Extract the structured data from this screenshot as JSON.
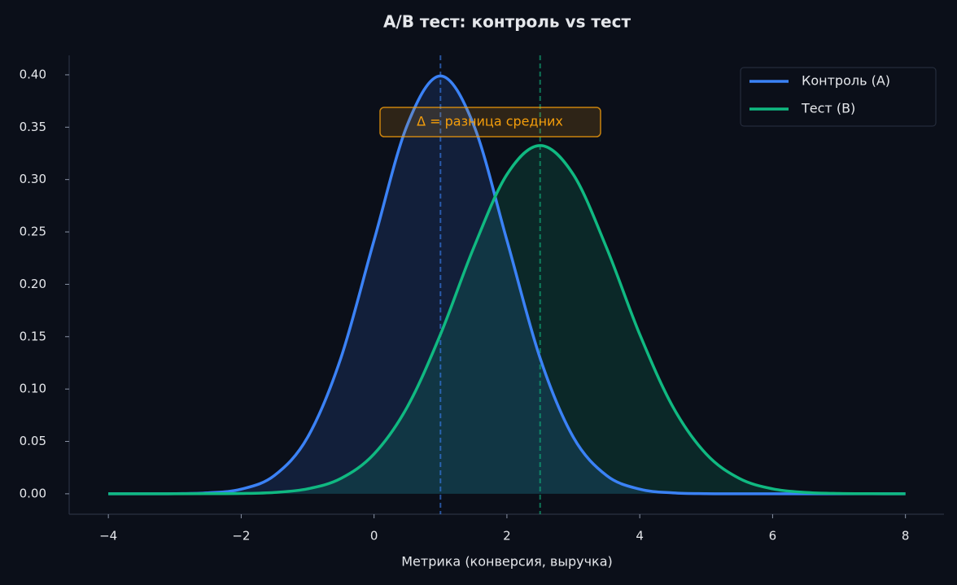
{
  "chart_data": {
    "type": "line",
    "title": "A/B тест: контроль vs тест",
    "x_label": "Метрика (конверсия, выручка)",
    "x": [
      -4,
      -3.5,
      -3,
      -2.5,
      -2,
      -1.5,
      -1,
      -0.5,
      0,
      0.5,
      1,
      1.5,
      2,
      2.5,
      3,
      3.5,
      4,
      4.5,
      5,
      5.5,
      6,
      6.5,
      7,
      7.5,
      8
    ],
    "series": [
      {
        "name": "Контроль (A)",
        "color": "#3b82f6",
        "mean": 1,
        "values": [
          0.0,
          0.0,
          0.0001,
          0.0009,
          0.0044,
          0.0175,
          0.054,
          0.1295,
          0.242,
          0.3521,
          0.3989,
          0.3521,
          0.242,
          0.1295,
          0.054,
          0.0175,
          0.0044,
          0.0009,
          0.0001,
          0.0,
          0.0,
          0.0,
          0.0,
          0.0,
          0.0
        ]
      },
      {
        "name": "Тест (B)",
        "color": "#10b981",
        "mean": 2.5,
        "values": [
          0.0,
          0.0,
          0.0,
          0.0001,
          0.0003,
          0.0013,
          0.0047,
          0.0146,
          0.038,
          0.0829,
          0.1522,
          0.2349,
          0.3048,
          0.3325,
          0.3048,
          0.2349,
          0.1522,
          0.0829,
          0.038,
          0.0146,
          0.0047,
          0.0013,
          0.0003,
          0.0001,
          0.0
        ]
      }
    ],
    "annotation": "Δ = разница средних",
    "annotation_color": "#f59e0b",
    "xlim": [
      -4.59,
      8.58
    ],
    "ylim": [
      -0.0195,
      0.4186
    ],
    "xticks": [
      {
        "value": -4,
        "label": "−4"
      },
      {
        "value": -2,
        "label": "−2"
      },
      0,
      2,
      4,
      6,
      8
    ],
    "yticks": [
      {
        "value": 0,
        "label": "0.00"
      },
      {
        "value": 0.05,
        "label": "0.05"
      },
      {
        "value": 0.1,
        "label": "0.10"
      },
      {
        "value": 0.15,
        "label": "0.15"
      },
      {
        "value": 0.2,
        "label": "0.20"
      },
      {
        "value": 0.25,
        "label": "0.25"
      },
      {
        "value": 0.3,
        "label": "0.30"
      },
      {
        "value": 0.35,
        "label": "0.35"
      },
      {
        "value": 0.4,
        "label": "0.40"
      }
    ],
    "grid": false,
    "legend": "upper right"
  }
}
